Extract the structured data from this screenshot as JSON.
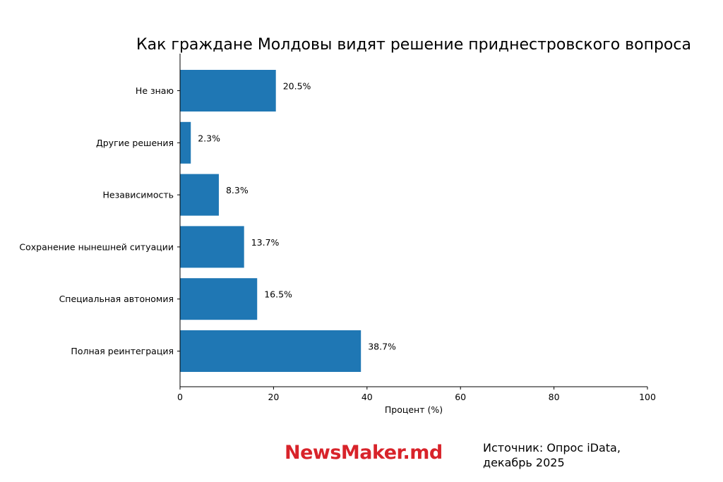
{
  "chart_data": {
    "type": "bar",
    "orientation": "horizontal",
    "title": "Как граждане Молдовы видят решение приднестровского вопроса",
    "xlabel": "Процент (%)",
    "ylabel": "",
    "xlim": [
      0,
      100
    ],
    "xticks": [
      "0",
      "20",
      "40",
      "60",
      "80",
      "100"
    ],
    "categories": [
      "Не знаю",
      "Другие решения",
      "Независимость",
      "Сохранение нынешней ситуации",
      "Специальная автономия",
      "Полная реинтеграция"
    ],
    "values": [
      20.5,
      2.3,
      8.3,
      13.7,
      16.5,
      38.7
    ],
    "value_labels": [
      "20.5%",
      "2.3%",
      "8.3%",
      "13.7%",
      "16.5%",
      "38.7%"
    ],
    "bar_color": "#1f77b4",
    "grid": false
  },
  "footer": {
    "brand": "NewsMaker.md",
    "brand_color": "#d8232a",
    "source": "Источник: Опрос iData,\nдекабрь 2025"
  }
}
